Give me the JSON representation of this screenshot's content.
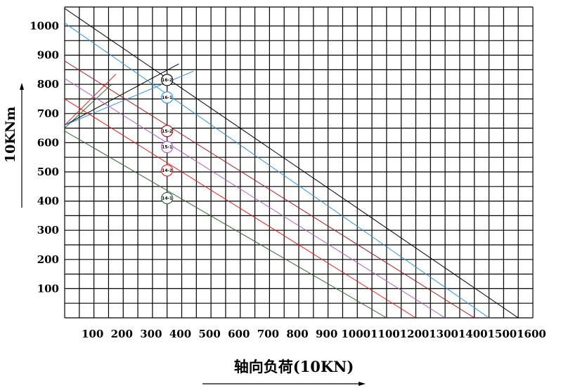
{
  "chart_data": {
    "type": "line",
    "title": "",
    "xlabel": "轴向负荷(10KN)",
    "ylabel": "10KNm",
    "xlim": [
      0,
      1600
    ],
    "ylim": [
      0,
      1000
    ],
    "x_ticks": [
      "100",
      "200",
      "300",
      "400",
      "500",
      "600",
      "700",
      "800",
      "900",
      "1000",
      "1100",
      "1200",
      "1300",
      "1400",
      "1500",
      "1600"
    ],
    "y_ticks": [
      "100",
      "200",
      "300",
      "400",
      "500",
      "600",
      "700",
      "800",
      "900",
      "1000"
    ],
    "grid": true,
    "series": [
      {
        "name": "14-1",
        "color": "#2e6b2e",
        "x": [
          0,
          1100
        ],
        "y": [
          640,
          0
        ],
        "marker_at": [
          350,
          410
        ]
      },
      {
        "name": "14-2",
        "color": "#e8201a",
        "x": [
          0,
          1200
        ],
        "y": [
          750,
          0
        ],
        "marker_at": [
          350,
          505
        ]
      },
      {
        "name": "15-1",
        "color": "#b55cc8",
        "x": [
          0,
          1300
        ],
        "y": [
          820,
          0
        ],
        "marker_at": [
          350,
          585
        ]
      },
      {
        "name": "15-2",
        "color": "#a8191e",
        "x": [
          0,
          1400
        ],
        "y": [
          880,
          0
        ],
        "marker_at": [
          350,
          640
        ]
      },
      {
        "name": "16-1",
        "color": "#2b94e8",
        "x": [
          0,
          1450
        ],
        "y": [
          1010,
          0
        ],
        "marker_at": [
          350,
          755
        ]
      },
      {
        "name": "16-2",
        "color": "#000000",
        "x": [
          0,
          1550
        ],
        "y": [
          1060,
          0
        ],
        "marker_at": [
          350,
          815
        ]
      }
    ],
    "diagonal_lines": [
      {
        "color": "#2e6b2e",
        "x": [
          0,
          160
        ],
        "y": [
          650,
          800
        ]
      },
      {
        "color": "#e8201a",
        "x": [
          0,
          175
        ],
        "y": [
          660,
          835
        ]
      },
      {
        "color": "#000000",
        "x": [
          0,
          390
        ],
        "y": [
          660,
          870
        ]
      },
      {
        "color": "#2b94e8",
        "x": [
          0,
          440
        ],
        "y": [
          660,
          845
        ]
      }
    ]
  }
}
